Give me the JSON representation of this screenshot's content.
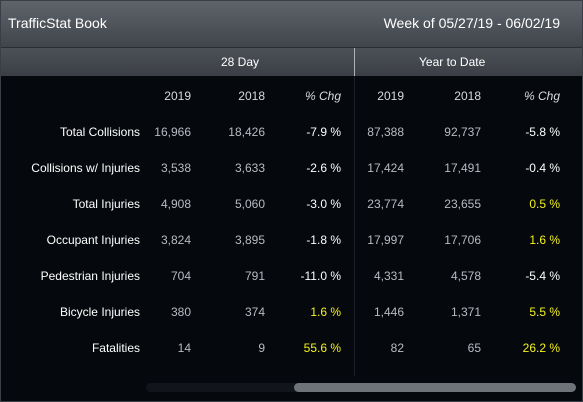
{
  "header": {
    "title": "TrafficStat Book",
    "week": "Week of 05/27/19 - 06/02/19"
  },
  "groups": {
    "day28": "28 Day",
    "ytd": "Year to Date"
  },
  "columns": [
    "2019",
    "2018",
    "% Chg",
    "2019",
    "2018",
    "% Chg"
  ],
  "rows": [
    {
      "label": "Total Collisions",
      "d28_2019": "16,966",
      "d28_2018": "18,426",
      "d28_pct": "-7.9 %",
      "ytd_2019": "87,388",
      "ytd_2018": "92,737",
      "ytd_pct": "-5.8 %"
    },
    {
      "label": "Collisions w/ Injuries",
      "d28_2019": "3,538",
      "d28_2018": "3,633",
      "d28_pct": "-2.6 %",
      "ytd_2019": "17,424",
      "ytd_2018": "17,491",
      "ytd_pct": "-0.4 %"
    },
    {
      "label": "Total Injuries",
      "d28_2019": "4,908",
      "d28_2018": "5,060",
      "d28_pct": "-3.0 %",
      "ytd_2019": "23,774",
      "ytd_2018": "23,655",
      "ytd_pct": "0.5 %"
    },
    {
      "label": "Occupant Injuries",
      "d28_2019": "3,824",
      "d28_2018": "3,895",
      "d28_pct": "-1.8 %",
      "ytd_2019": "17,997",
      "ytd_2018": "17,706",
      "ytd_pct": "1.6 %"
    },
    {
      "label": "Pedestrian Injuries",
      "d28_2019": "704",
      "d28_2018": "791",
      "d28_pct": "-11.0 %",
      "ytd_2019": "4,331",
      "ytd_2018": "4,578",
      "ytd_pct": "-5.4 %"
    },
    {
      "label": "Bicycle Injuries",
      "d28_2019": "380",
      "d28_2018": "374",
      "d28_pct": "1.6 %",
      "ytd_2019": "1,446",
      "ytd_2018": "1,371",
      "ytd_pct": "5.5 %"
    },
    {
      "label": "Fatalities",
      "d28_2019": "14",
      "d28_2018": "9",
      "d28_pct": "55.6 %",
      "ytd_2019": "82",
      "ytd_2018": "65",
      "ytd_pct": "26.2 %"
    }
  ],
  "colors": {
    "increase": "#f5f21b",
    "decrease": "#ffffff"
  }
}
